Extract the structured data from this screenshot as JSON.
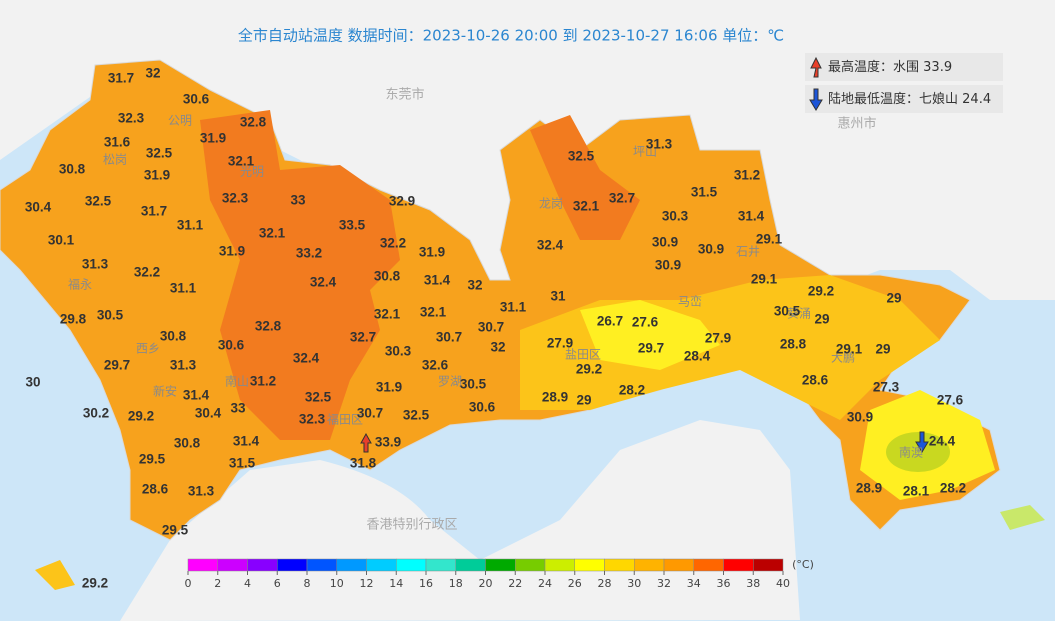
{
  "header": {
    "title": "全市自动站温度  数据时间：2023-10-26 20:00 到 2023-10-27 16:06  单位：℃"
  },
  "legend": {
    "max": {
      "label": "最高温度：水围",
      "value": 33.9
    },
    "min": {
      "label": "陆地最低温度：七娘山",
      "value": 24.4
    }
  },
  "places": [
    "东莞市",
    "惠州市",
    "香港特别行政区",
    "盐田区",
    "南澳",
    "公明",
    "光明",
    "松岗",
    "福永",
    "西乡",
    "新安",
    "南山",
    "福田区",
    "罗湖",
    "龙岗",
    "坪山",
    "大鹏",
    "石井",
    "葵涌",
    "马峦"
  ],
  "station_temps": [
    31.7,
    32,
    30.6,
    32.3,
    32.8,
    31.6,
    32.5,
    31.9,
    32.1,
    31.9,
    30.8,
    30.4,
    32.5,
    31.7,
    32.3,
    33,
    32.9,
    31.1,
    32.1,
    33.5,
    32.2,
    30.1,
    31.9,
    33.2,
    31.9,
    31.3,
    32.2,
    30.8,
    31.4,
    32,
    32.4,
    31.1,
    29.8,
    30.5,
    32.1,
    32.1,
    31.1,
    32.8,
    30.8,
    30.6,
    32.7,
    30.7,
    30.7,
    32,
    30.3,
    29.7,
    31.3,
    32.4,
    32.6,
    31.2,
    30,
    31.4,
    31.9,
    30.5,
    32.5,
    30.2,
    29.2,
    30.4,
    33,
    30.7,
    32.5,
    30.6,
    32.3,
    30.8,
    31.4,
    33.9,
    29.5,
    31.5,
    31.8,
    28.6,
    31.3,
    29.5,
    29.2,
    31.3,
    32.5,
    31.2,
    31.5,
    32.1,
    32.7,
    30.3,
    31.4,
    32.4,
    30.9,
    29.1,
    30.9,
    30.9,
    29.1,
    31,
    29.2,
    29,
    30.5,
    29,
    26.7,
    27.6,
    27.9,
    28.8,
    27.9,
    29.7,
    29.1,
    29,
    28.4,
    29.2,
    28.6,
    27.3,
    28.2,
    28.9,
    29,
    27.6,
    30.9,
    24.4,
    28.9,
    28.1,
    28.2
  ],
  "colorbar": {
    "unit": "(°C)",
    "ticks": [
      0,
      2,
      4,
      6,
      8,
      10,
      12,
      14,
      16,
      18,
      20,
      22,
      24,
      26,
      28,
      30,
      32,
      34,
      36,
      38,
      40
    ],
    "colors": [
      "#ff00ff",
      "#cc00ff",
      "#8800ff",
      "#0000ff",
      "#0055ff",
      "#0099ff",
      "#00ccff",
      "#00ffff",
      "#33e6cc",
      "#00cc99",
      "#00aa00",
      "#77cc00",
      "#ccee00",
      "#ffff00",
      "#ffd700",
      "#ffb300",
      "#ff9900",
      "#ff6600",
      "#ff0000",
      "#bb0000"
    ]
  }
}
